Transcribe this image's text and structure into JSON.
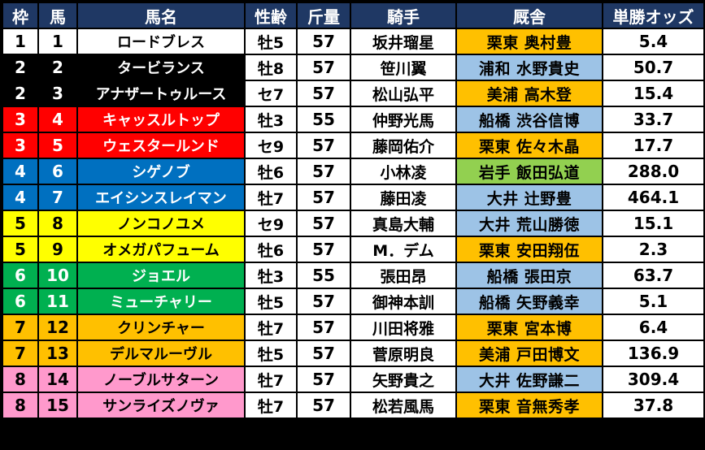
{
  "headers": [
    "枠",
    "馬",
    "馬名",
    "性齢",
    "斤量",
    "騎手",
    "厩舎",
    "単勝オッズ"
  ],
  "frame_colors": {
    "1": {
      "bg": "#ffffff",
      "fg": "#000000"
    },
    "2": {
      "bg": "#000000",
      "fg": "#ffffff"
    },
    "3": {
      "bg": "#ff0000",
      "fg": "#ffffff"
    },
    "4": {
      "bg": "#0070c0",
      "fg": "#ffffff"
    },
    "5": {
      "bg": "#ffff00",
      "fg": "#000000"
    },
    "6": {
      "bg": "#00b050",
      "fg": "#ffffff"
    },
    "7": {
      "bg": "#ffc000",
      "fg": "#000000"
    },
    "8": {
      "bg": "#ff99cc",
      "fg": "#000000"
    }
  },
  "region_colors": {
    "east": "#ffc000",
    "west": "#9dc3e6",
    "green": "#92d050"
  },
  "rows": [
    {
      "waku": "1",
      "uma": "1",
      "name": "ロードブレス",
      "sexage": "牡5",
      "weight": "57",
      "jockey": "坂井瑠星",
      "stable": "栗東 奥村豊",
      "region": "east",
      "odds": "5.4"
    },
    {
      "waku": "2",
      "uma": "2",
      "name": "タービランス",
      "sexage": "牡8",
      "weight": "57",
      "jockey": "笹川翼",
      "stable": "浦和 水野貴史",
      "region": "west",
      "odds": "50.7"
    },
    {
      "waku": "2",
      "uma": "3",
      "name": "アナザートゥルース",
      "sexage": "セ7",
      "weight": "57",
      "jockey": "松山弘平",
      "stable": "美浦 高木登",
      "region": "east",
      "odds": "15.4"
    },
    {
      "waku": "3",
      "uma": "4",
      "name": "キャッスルトップ",
      "sexage": "牡3",
      "weight": "55",
      "jockey": "仲野光馬",
      "stable": "船橋 渋谷信博",
      "region": "west",
      "odds": "33.7"
    },
    {
      "waku": "3",
      "uma": "5",
      "name": "ウェスタールンド",
      "sexage": "セ9",
      "weight": "57",
      "jockey": "藤岡佑介",
      "stable": "栗東 佐々木晶",
      "region": "east",
      "odds": "17.7"
    },
    {
      "waku": "4",
      "uma": "6",
      "name": "シゲノブ",
      "sexage": "牡6",
      "weight": "57",
      "jockey": "小林凌",
      "stable": "岩手 飯田弘道",
      "region": "green",
      "odds": "288.0"
    },
    {
      "waku": "4",
      "uma": "7",
      "name": "エイシンスレイマン",
      "sexage": "牡7",
      "weight": "57",
      "jockey": "藤田凌",
      "stable": "大井 辻野豊",
      "region": "west",
      "odds": "464.1"
    },
    {
      "waku": "5",
      "uma": "8",
      "name": "ノンコノユメ",
      "sexage": "セ9",
      "weight": "57",
      "jockey": "真島大輔",
      "stable": "大井 荒山勝徳",
      "region": "west",
      "odds": "15.1"
    },
    {
      "waku": "5",
      "uma": "9",
      "name": "オメガパフューム",
      "sexage": "牡6",
      "weight": "57",
      "jockey": "M．デム",
      "stable": "栗東 安田翔伍",
      "region": "east",
      "odds": "2.3"
    },
    {
      "waku": "6",
      "uma": "10",
      "name": "ジョエル",
      "sexage": "牡3",
      "weight": "55",
      "jockey": "張田昂",
      "stable": "船橋 張田京",
      "region": "west",
      "odds": "63.7"
    },
    {
      "waku": "6",
      "uma": "11",
      "name": "ミューチャリー",
      "sexage": "牡5",
      "weight": "57",
      "jockey": "御神本訓",
      "stable": "船橋 矢野義幸",
      "region": "west",
      "odds": "5.1"
    },
    {
      "waku": "7",
      "uma": "12",
      "name": "クリンチャー",
      "sexage": "牡7",
      "weight": "57",
      "jockey": "川田将雅",
      "stable": "栗東 宮本博",
      "region": "east",
      "odds": "6.4"
    },
    {
      "waku": "7",
      "uma": "13",
      "name": "デルマルーヴル",
      "sexage": "牡5",
      "weight": "57",
      "jockey": "菅原明良",
      "stable": "美浦 戸田博文",
      "region": "east",
      "odds": "136.9"
    },
    {
      "waku": "8",
      "uma": "14",
      "name": "ノーブルサターン",
      "sexage": "牡7",
      "weight": "57",
      "jockey": "矢野貴之",
      "stable": "大井 佐野謙二",
      "region": "west",
      "odds": "309.4"
    },
    {
      "waku": "8",
      "uma": "15",
      "name": "サンライズノヴァ",
      "sexage": "牡7",
      "weight": "57",
      "jockey": "松若風馬",
      "stable": "栗東 音無秀孝",
      "region": "east",
      "odds": "37.8"
    }
  ]
}
